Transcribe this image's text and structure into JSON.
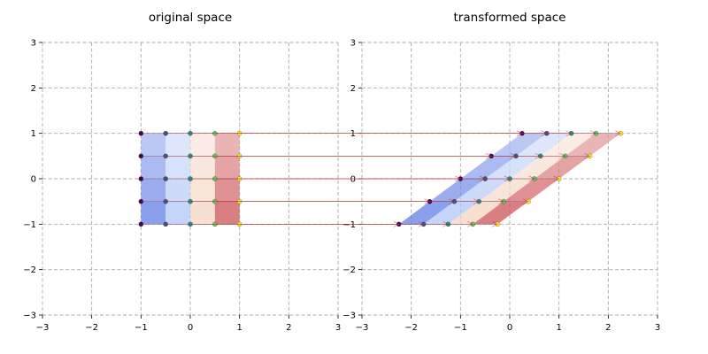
{
  "chart_data": [
    {
      "type": "scatter",
      "title": "original space",
      "xlim": [
        -3,
        3
      ],
      "ylim": [
        -3,
        3
      ],
      "xticks": [
        "−3",
        "−2",
        "−1",
        "0",
        "1",
        "2",
        "3"
      ],
      "yticks": [
        "−3",
        "−2",
        "−1",
        "0",
        "1",
        "2",
        "3"
      ],
      "grid": true,
      "x": [
        -1,
        -0.5,
        0,
        0.5,
        1
      ],
      "y": [
        -1,
        -0.5,
        0,
        0.5,
        1
      ],
      "points": "5x5 lattice of (x, y) for x, y in {-1, -0.5, 0, 0.5, 1}"
    },
    {
      "type": "scatter",
      "title": "transformed space",
      "xlim": [
        -3,
        3
      ],
      "ylim": [
        -3,
        3
      ],
      "xticks": [
        "−3",
        "−2",
        "−1",
        "0",
        "1",
        "2",
        "3"
      ],
      "yticks": [
        "−3",
        "−2",
        "−1",
        "0",
        "1",
        "2",
        "3"
      ],
      "grid": true,
      "shear_x": 1.25,
      "points": "lattice mapped to (x + 1.25*y, y)"
    }
  ],
  "colors": {
    "columns": [
      "#3b5fe0",
      "#9fb8f5",
      "#f2c9b4",
      "#c0282d"
    ],
    "points": [
      "#440154",
      "#3b528b",
      "#21918c",
      "#5ec962",
      "#fde725"
    ],
    "arrow": "#b03030"
  }
}
